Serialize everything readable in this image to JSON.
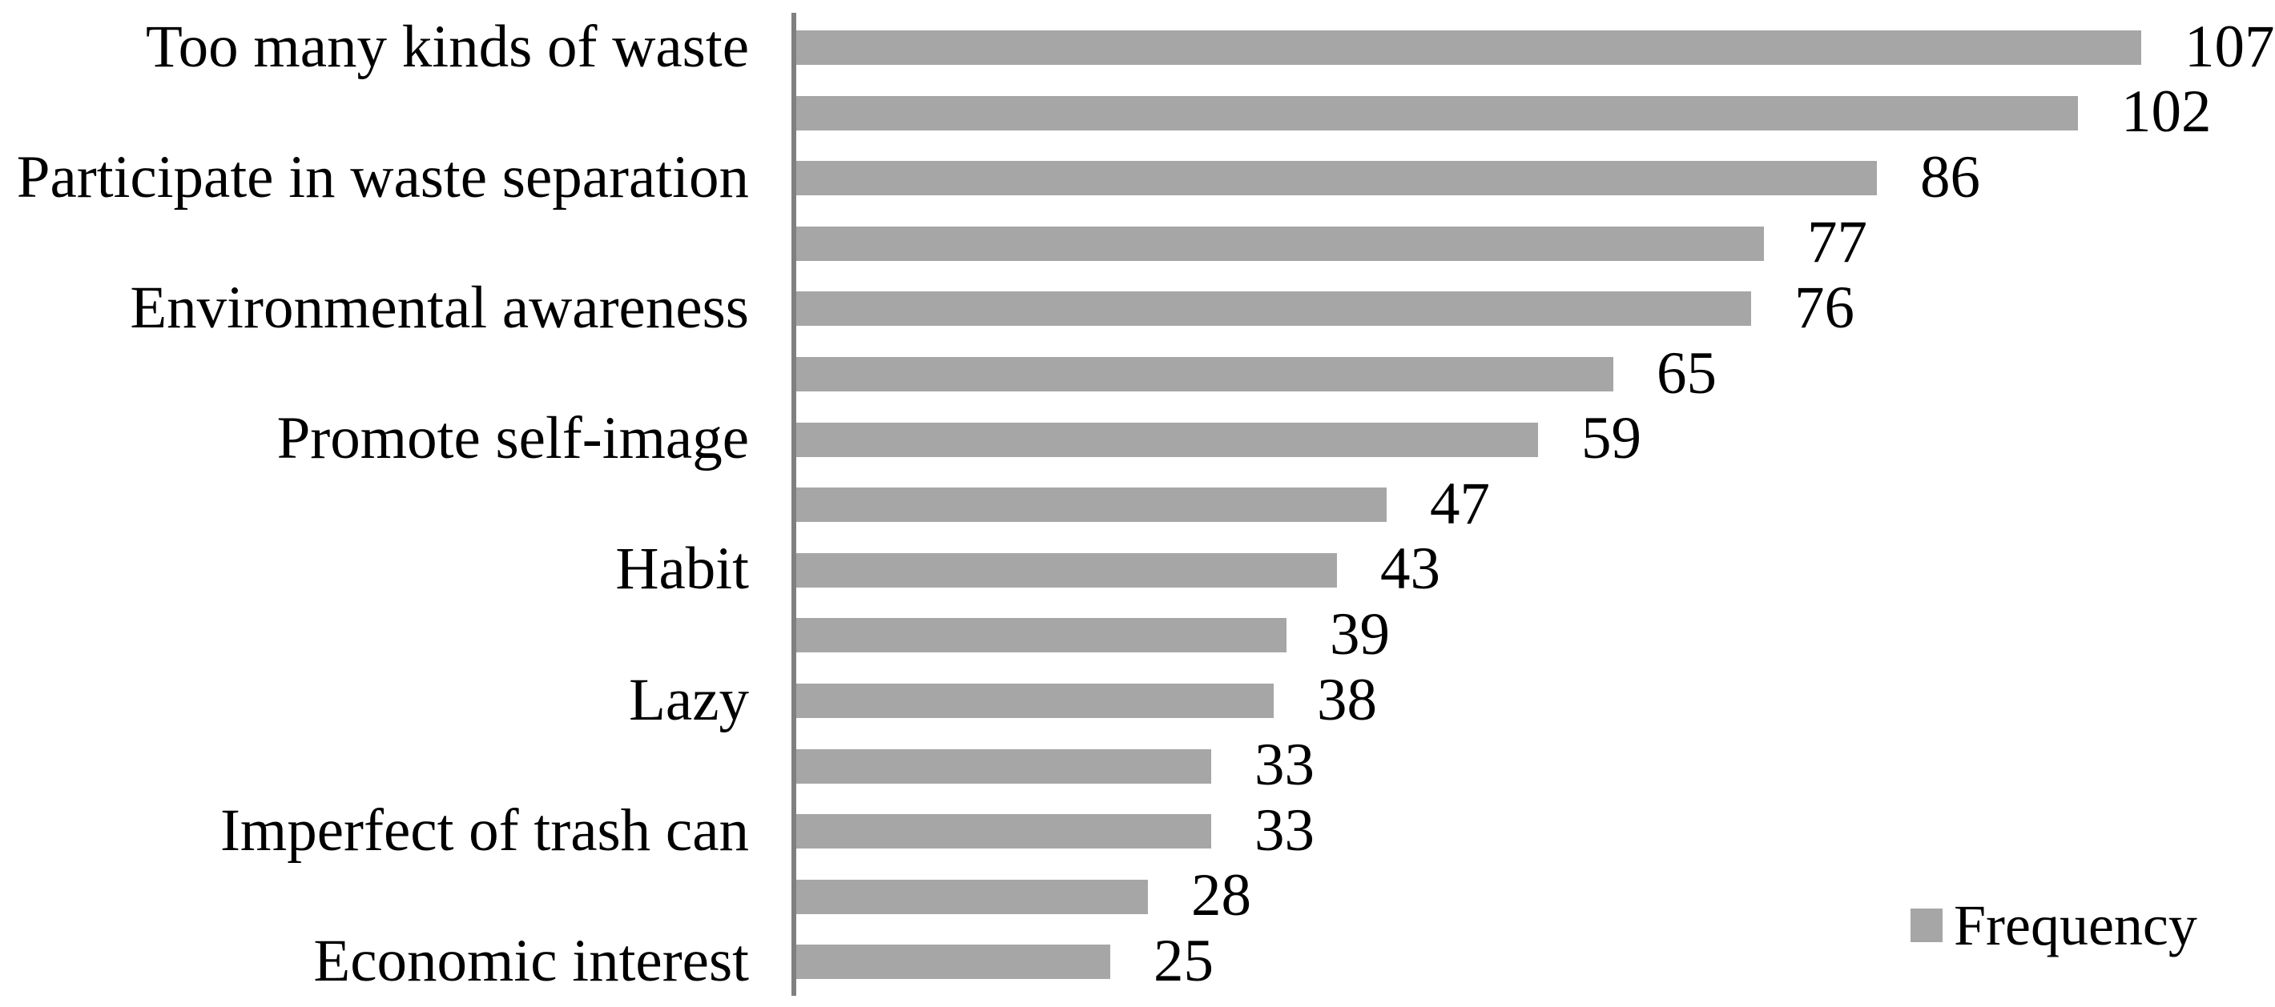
{
  "chart_data": {
    "type": "bar",
    "orientation": "horizontal",
    "title": "",
    "xlabel": "",
    "ylabel": "",
    "categories": [
      "Too many kinds of waste",
      "",
      "Participate in waste separation",
      "",
      "Environmental awareness",
      "",
      "Promote self-image",
      "",
      "Habit",
      "",
      "Lazy",
      "",
      "Imperfect of trash can",
      "",
      "Economic interest"
    ],
    "series": [
      {
        "name": "Frequency",
        "values": [
          107,
          102,
          86,
          77,
          76,
          65,
          59,
          47,
          43,
          39,
          38,
          33,
          33,
          28,
          25
        ]
      }
    ],
    "data_labels": [
      107,
      102,
      86,
      77,
      76,
      65,
      59,
      47,
      43,
      39,
      38,
      33,
      33,
      28,
      25
    ],
    "xlim": [
      0,
      117
    ],
    "grid": false,
    "category_label_interval": 2,
    "legend": {
      "label": "Frequency",
      "position": "bottom-right"
    },
    "colors": {
      "bar": "#A6A6A6",
      "axis_line": "#808080",
      "text": "#000000",
      "background": "#FFFFFF"
    }
  }
}
